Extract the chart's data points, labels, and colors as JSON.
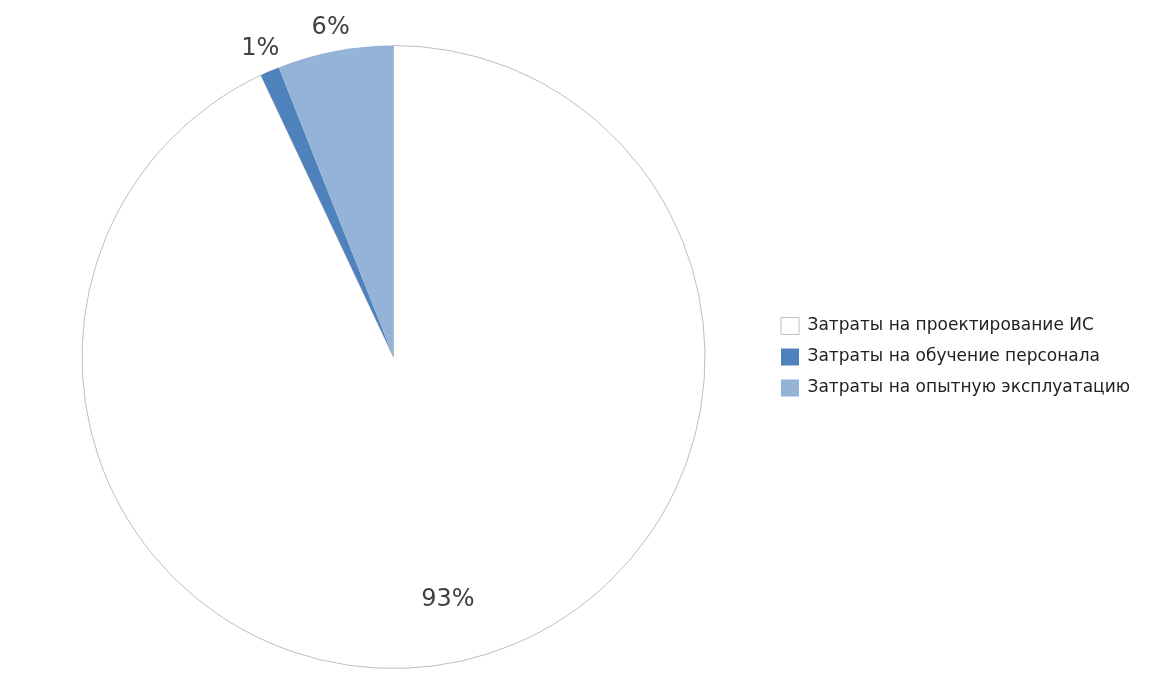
{
  "chart_data": {
    "type": "pie",
    "categories": [
      "Затраты на проектирование ИС",
      "Затраты на обучение персонала",
      "Затраты на опытную эксплуатацию"
    ],
    "values": [
      93,
      1,
      6
    ],
    "colors": [
      "#ffffff",
      "#4f81bd",
      "#95b3d7"
    ],
    "value_labels": [
      "93%",
      "1%",
      "6%"
    ],
    "legend": "right"
  }
}
